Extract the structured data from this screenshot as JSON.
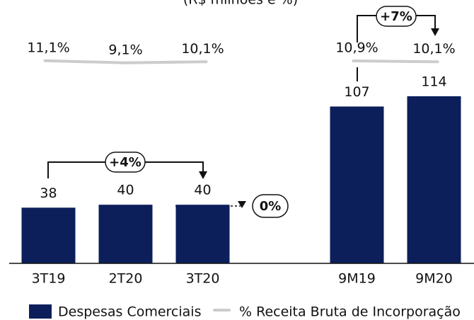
{
  "chart_data": {
    "type": "bar",
    "title": "(R$ milhões e %)",
    "categories": [
      "3T19",
      "2T20",
      "3T20",
      null,
      "9M19",
      "9M20"
    ],
    "series": [
      {
        "name": "Despesas Comerciais",
        "color": "#0c1f5b",
        "values": [
          38,
          40,
          40,
          null,
          107,
          114
        ]
      },
      {
        "name": "% Receita Bruta de Incorporação",
        "color": "#cccccc",
        "type": "line",
        "axis": "y2",
        "values": [
          11.1,
          9.1,
          10.1,
          null,
          10.9,
          10.1
        ],
        "value_labels": [
          "11,1%",
          "9,1%",
          "10,1%",
          null,
          "10,9%",
          "10,1%"
        ]
      }
    ],
    "ylim": [
      0,
      170
    ],
    "y2lim": [
      -180,
      55
    ],
    "annotations": [
      "+4%",
      "0%",
      "+7%"
    ]
  }
}
